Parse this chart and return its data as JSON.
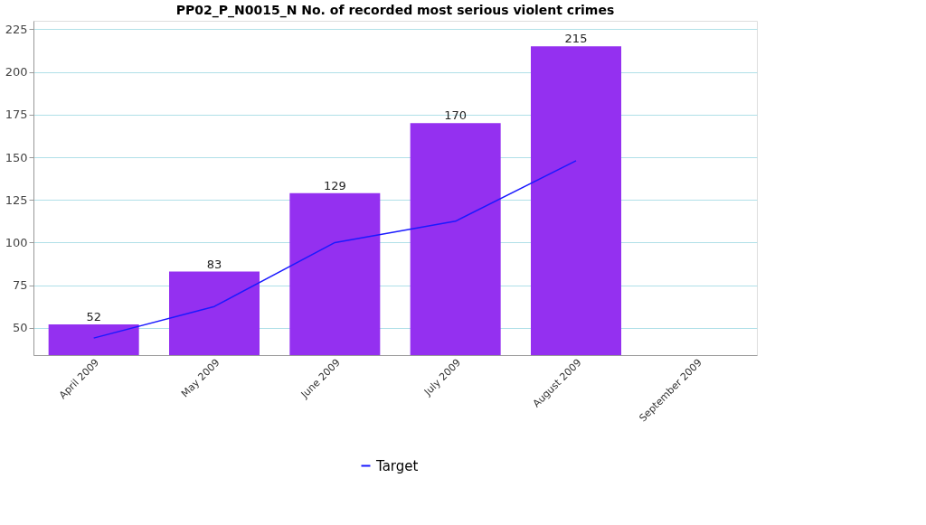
{
  "chart_data": {
    "type": "bar",
    "title": "PP02_P_N0015_N No. of recorded most serious violent crimes",
    "categories": [
      "April 2009",
      "May 2009",
      "June 2009",
      "July 2009",
      "August 2009",
      "September 2009"
    ],
    "series": [
      {
        "color": "#9430f0",
        "values": [
          52,
          83,
          129,
          170,
          215,
          null
        ],
        "value_labels": [
          "52",
          "83",
          "129",
          "170",
          "215",
          null
        ]
      },
      {
        "type": "line",
        "name": "Target",
        "color": "#1a1aff",
        "values": [
          44,
          62.5,
          100,
          112.5,
          148,
          null
        ]
      }
    ],
    "ylim": [
      34,
      230
    ],
    "yticks": [
      50,
      75,
      100,
      125,
      150,
      175,
      200,
      225
    ],
    "grid": "y",
    "legend": "bottom"
  }
}
